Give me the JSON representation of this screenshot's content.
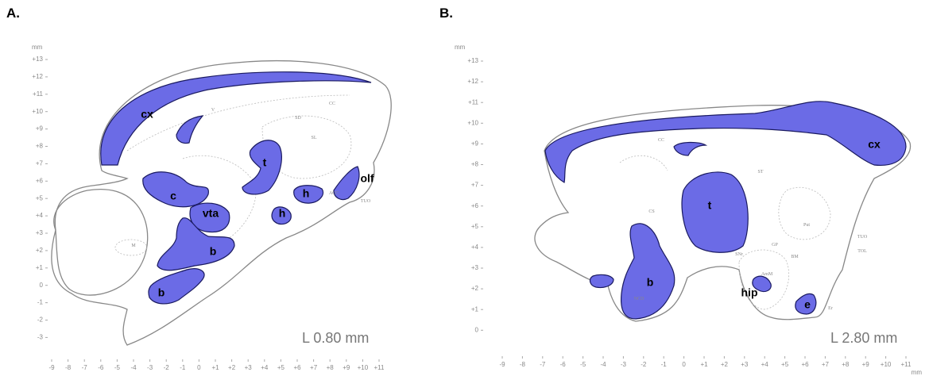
{
  "panels": [
    {
      "label": "A.",
      "y_unit": "mm",
      "y_ticks": [
        "+13",
        "+12",
        "+11",
        "+10",
        "+9",
        "+8",
        "+7",
        "+6",
        "+5",
        "+4",
        "+3",
        "+2",
        "+1",
        "0",
        "-1",
        "-2",
        "-3"
      ],
      "x_ticks": [
        "-9",
        "-8",
        "-7",
        "-6",
        "-5",
        "-4",
        "-3",
        "-2",
        "-1",
        "0",
        "+1",
        "+2",
        "+3",
        "+4",
        "+5",
        "+6",
        "+7",
        "+8",
        "+9",
        "+10",
        "+11"
      ],
      "section": "L 0.80 mm",
      "regions": [
        "cx",
        "t",
        "c",
        "vta",
        "olf",
        "h",
        "h",
        "b",
        "b"
      ],
      "atlas_labels": [
        "SD",
        "SL",
        "CC",
        "V",
        "M",
        "TUO",
        "ACC"
      ]
    },
    {
      "label": "B.",
      "y_unit": "mm",
      "x_unit": "mm",
      "y_ticks": [
        "+13",
        "+12",
        "+11",
        "+10",
        "+9",
        "+8",
        "+7",
        "+6",
        "+5",
        "+4",
        "+3",
        "+2",
        "+1",
        "0"
      ],
      "x_ticks": [
        "-9",
        "-8",
        "-7",
        "-6",
        "-5",
        "-4",
        "-3",
        "-2",
        "-1",
        "0",
        "+1",
        "+2",
        "+3",
        "+4",
        "+5",
        "+6",
        "+7",
        "+8",
        "+9",
        "+10",
        "+11"
      ],
      "section": "L 2.80 mm",
      "regions": [
        "cx",
        "t",
        "b",
        "hip",
        "e"
      ],
      "atlas_labels": [
        "CC",
        "ST",
        "Put",
        "GP",
        "BM",
        "TUO",
        "TOL",
        "CS",
        "SNr",
        "AmM",
        "Er",
        "NCD"
      ]
    }
  ]
}
